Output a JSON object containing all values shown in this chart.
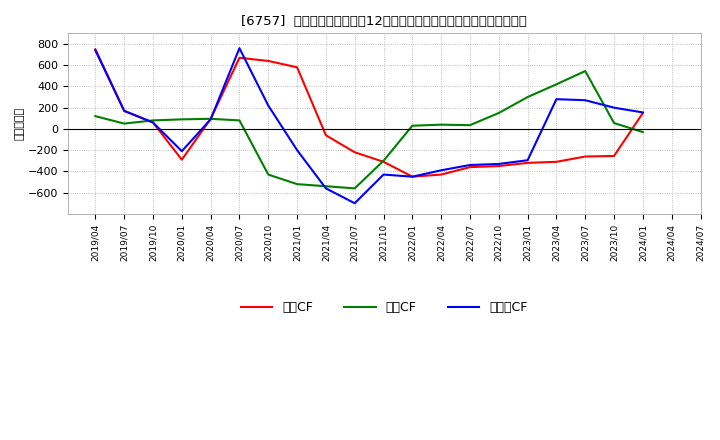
{
  "title": "[6757]  キャッシュフローの12か月移動合計の対前年同期増減額の推移",
  "ylabel": "（百万円）",
  "x_labels": [
    "2019/04",
    "2019/07",
    "2019/10",
    "2020/01",
    "2020/04",
    "2020/07",
    "2020/10",
    "2021/01",
    "2021/04",
    "2021/07",
    "2021/10",
    "2022/01",
    "2022/04",
    "2022/07",
    "2022/10",
    "2023/01",
    "2023/04",
    "2023/07",
    "2023/10",
    "2024/01",
    "2024/04",
    "2024/07"
  ],
  "operating_cf": [
    750,
    170,
    60,
    -290,
    95,
    670,
    640,
    580,
    -60,
    -220,
    -310,
    -450,
    -430,
    -360,
    -350,
    -320,
    -310,
    -260,
    -255,
    150,
    null,
    null
  ],
  "investing_cf": [
    120,
    50,
    80,
    90,
    95,
    80,
    -430,
    -520,
    -540,
    -560,
    -300,
    30,
    40,
    35,
    150,
    300,
    420,
    545,
    55,
    -30,
    null,
    null
  ],
  "free_cf": [
    740,
    170,
    60,
    -210,
    90,
    760,
    220,
    -200,
    -560,
    -700,
    -430,
    -450,
    -390,
    -340,
    -330,
    -295,
    280,
    270,
    200,
    155,
    null,
    null
  ],
  "colors": {
    "operating": "#ff0000",
    "investing": "#008000",
    "free": "#0000ff"
  },
  "ylim": [
    -800,
    900
  ],
  "yticks": [
    -600,
    -400,
    -200,
    0,
    200,
    400,
    600,
    800
  ],
  "bg_color": "#ffffff",
  "plot_bg_color": "#ffffff",
  "grid_color": "#aaaaaa",
  "legend_labels": [
    "営業CF",
    "投資CF",
    "フリーCF"
  ]
}
